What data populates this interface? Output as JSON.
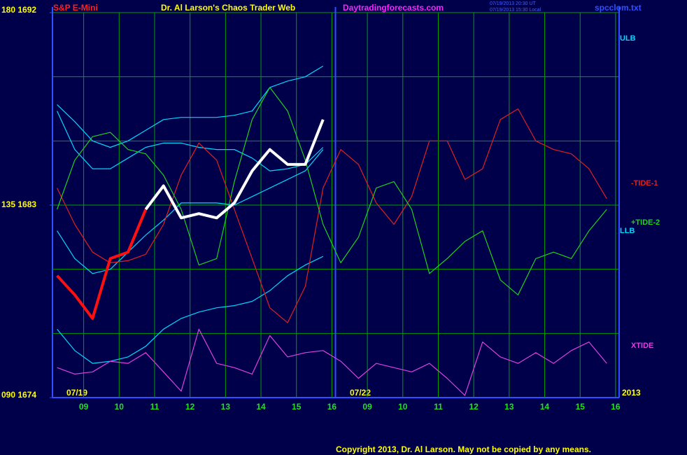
{
  "chart_data": {
    "type": "line",
    "instrument": "S&P E-Mini",
    "title": "Dr. Al Larson's Chaos Trader Web",
    "website": "Daytradingforecasts.com",
    "timestamps": [
      "07/19/2013 20:30 UT",
      "07/19/2013 15:30 Local"
    ],
    "file": "spcclom.txt",
    "copyright": "Copyright 2013, Dr. Al Larson. May not be copied by any means.",
    "date_labels": [
      "07/19",
      "07/22"
    ],
    "year": "2013",
    "xlim": [
      0.12,
      16.1
    ],
    "ylim": [
      1674,
      1692
    ],
    "xticks": [
      {
        "value": 1,
        "label": "09"
      },
      {
        "value": 2,
        "label": "10"
      },
      {
        "value": 3,
        "label": "11"
      },
      {
        "value": 4,
        "label": "12"
      },
      {
        "value": 5,
        "label": "13"
      },
      {
        "value": 6,
        "label": "14"
      },
      {
        "value": 7,
        "label": "15"
      },
      {
        "value": 8,
        "label": "16"
      },
      {
        "value": 9,
        "label": "09"
      },
      {
        "value": 10,
        "label": "10"
      },
      {
        "value": 11,
        "label": "11"
      },
      {
        "value": 12,
        "label": "12"
      },
      {
        "value": 13,
        "label": "13"
      },
      {
        "value": 14,
        "label": "14"
      },
      {
        "value": 15,
        "label": "15"
      },
      {
        "value": 16,
        "label": "16"
      }
    ],
    "yticks": [
      {
        "value": 1692,
        "label": "180 1692"
      },
      {
        "value": 1683,
        "label": "135 1683"
      },
      {
        "value": 1674,
        "label": "090 1674"
      }
    ],
    "ygrid": [
      1692,
      1689,
      1686,
      1683,
      1680,
      1677,
      1674
    ],
    "grid": true,
    "current_time_x": 8.1,
    "x": [
      0.25,
      0.75,
      1.25,
      1.75,
      2.25,
      2.75,
      3.25,
      3.75,
      4.25,
      4.75,
      5.25,
      5.75,
      6.25,
      6.75,
      7.25,
      7.75,
      8.25,
      8.75,
      9.25,
      9.75,
      10.25,
      10.75,
      11.25,
      11.75,
      12.25,
      12.75,
      13.25,
      13.75,
      14.25,
      14.75,
      15.25,
      15.75
    ],
    "series": [
      {
        "name": "ULB",
        "color": "#00d8ff",
        "values": [
          1687.7,
          1686.9,
          1686.0,
          1685.7,
          1686.0,
          1686.5,
          1687.0,
          1687.1,
          1687.1,
          1687.1,
          1687.2,
          1687.4,
          1688.5,
          1688.8,
          1689.0,
          1689.5,
          null,
          null,
          null,
          null,
          null,
          null,
          null,
          null,
          null,
          null,
          null,
          null,
          null,
          null,
          null,
          null
        ]
      },
      {
        "color": "#00d8ff",
        "values": [
          1687.4,
          1685.6,
          1684.7,
          1684.7,
          1685.2,
          1685.7,
          1685.9,
          1685.9,
          1685.7,
          1685.6,
          1685.6,
          1685.2,
          1684.6,
          1684.7,
          1684.9,
          1685.7,
          null,
          null,
          null,
          null,
          null,
          null,
          null,
          null,
          null,
          null,
          null,
          null,
          null,
          null,
          null,
          null
        ]
      },
      {
        "color": "#00d8ff",
        "values": [
          1681.8,
          1680.5,
          1679.8,
          1680.0,
          1680.8,
          1681.6,
          1682.3,
          1683.1,
          1683.1,
          1683.1,
          1683.0,
          1683.4,
          1683.8,
          1684.2,
          1684.6,
          1685.6,
          null,
          null,
          null,
          null,
          null,
          null,
          null,
          null,
          null,
          null,
          null,
          null,
          null,
          null,
          null,
          null
        ]
      },
      {
        "name": "LLB",
        "color": "#00d8ff",
        "values": [
          1677.2,
          1676.2,
          1675.6,
          1675.7,
          1675.9,
          1676.4,
          1677.2,
          1677.7,
          1678.0,
          1678.2,
          1678.3,
          1678.5,
          1679.0,
          1679.7,
          1680.2,
          1680.6,
          null,
          null,
          null,
          null,
          null,
          null,
          null,
          null,
          null,
          null,
          null,
          null,
          null,
          null,
          null,
          null
        ]
      },
      {
        "name": "-TIDE-1",
        "color": "#e02020",
        "values": [
          1683.8,
          1682.1,
          1680.8,
          1680.3,
          1680.4,
          1680.7,
          1682.1,
          1684.4,
          1685.9,
          1685.1,
          1682.8,
          1680.5,
          1678.2,
          1677.5,
          1679.2,
          1683.8,
          1685.6,
          1684.9,
          1683.1,
          1682.1,
          1683.4,
          1686.0,
          1686.0,
          1684.2,
          1684.7,
          1687.0,
          1687.5,
          1686.0,
          1685.6,
          1685.4,
          1684.7,
          1683.3
        ]
      },
      {
        "name": "+TIDE-2",
        "color": "#20d020",
        "values": [
          1682.8,
          1685.1,
          1686.2,
          1686.4,
          1685.6,
          1685.4,
          1684.4,
          1682.8,
          1680.2,
          1680.5,
          1684.1,
          1687.0,
          1688.5,
          1687.4,
          1685.1,
          1682.1,
          1680.3,
          1681.5,
          1683.8,
          1684.1,
          1682.8,
          1679.8,
          1680.5,
          1681.3,
          1681.8,
          1679.5,
          1678.8,
          1680.5,
          1680.8,
          1680.5,
          1681.8,
          1682.8
        ]
      },
      {
        "name": "XTIDE",
        "color": "#e040e0",
        "values": [
          1675.4,
          1675.1,
          1675.2,
          1675.7,
          1675.6,
          1676.1,
          1675.2,
          1674.3,
          1677.2,
          1675.6,
          1675.4,
          1675.1,
          1676.9,
          1675.9,
          1676.1,
          1676.2,
          1675.7,
          1674.9,
          1675.6,
          1675.4,
          1675.2,
          1675.6,
          1674.9,
          1674.1,
          1676.6,
          1675.9,
          1675.6,
          1676.1,
          1675.6,
          1676.2,
          1676.6,
          1675.6
        ]
      },
      {
        "color": "#ff1010",
        "width": 4,
        "values": [
          1679.7,
          1678.8,
          1677.7,
          1680.5,
          1680.8,
          1682.8,
          null,
          null,
          null,
          null,
          null,
          null,
          null,
          null,
          null,
          null,
          null,
          null,
          null,
          null,
          null,
          null,
          null,
          null,
          null,
          null,
          null,
          null,
          null,
          null,
          null,
          null
        ]
      },
      {
        "color": "#ffffff",
        "width": 4,
        "values": [
          null,
          null,
          null,
          null,
          null,
          1682.8,
          1683.9,
          1682.4,
          1682.6,
          1682.4,
          1683.1,
          1684.6,
          1685.6,
          1684.9,
          1684.9,
          1687.0,
          null,
          null,
          null,
          null,
          null,
          null,
          null,
          null,
          null,
          null,
          null,
          null,
          null,
          null,
          null,
          null
        ]
      }
    ]
  }
}
